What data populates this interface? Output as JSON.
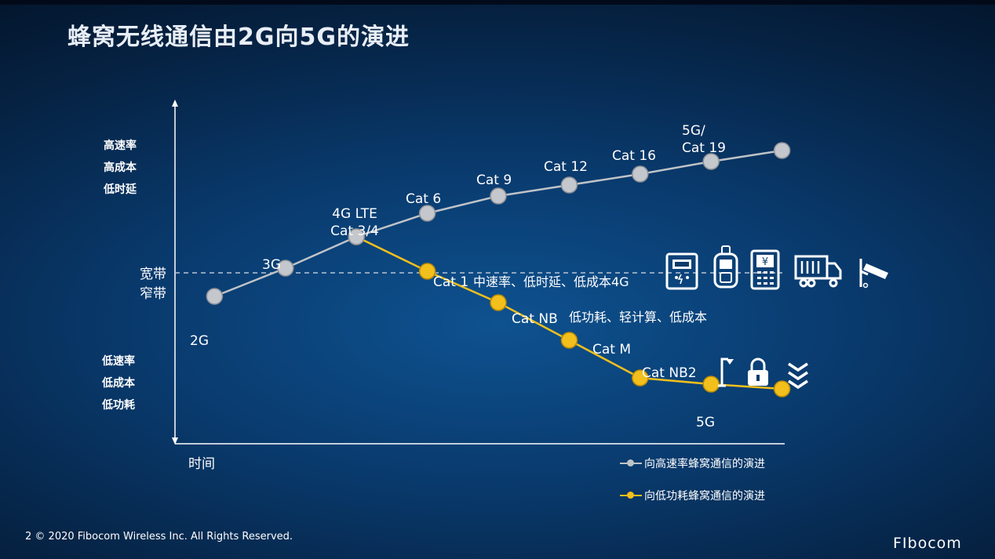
{
  "title": "蜂窝无线通信由2G向5G的演进",
  "y_labels": {
    "top": [
      "高速率",
      "高成本",
      "低时延"
    ],
    "bottom": [
      "低速率",
      "低成本",
      "低功耗"
    ]
  },
  "band_labels": [
    "宽带",
    "窄带"
  ],
  "x_label": "时间",
  "chart_data": {
    "type": "line",
    "xlabel": "时间",
    "series": [
      {
        "name": "向高速率蜂窝通信的演进",
        "color": "#bfc3c8",
        "points": [
          {
            "x": 1,
            "y": 1.95,
            "label": "2G"
          },
          {
            "x": 2,
            "y": 2.85,
            "label": "3G"
          },
          {
            "x": 3,
            "y": 3.85,
            "label": "4G LTE\nCat 3/4"
          },
          {
            "x": 4,
            "y": 4.6,
            "label": "Cat 6"
          },
          {
            "x": 5,
            "y": 5.15,
            "label": "Cat 9"
          },
          {
            "x": 6,
            "y": 5.5,
            "label": "Cat 12"
          },
          {
            "x": 7,
            "y": 5.85,
            "label": "Cat 16"
          },
          {
            "x": 8,
            "y": 6.25,
            "label": "5G/\nCat 19"
          },
          {
            "x": 9,
            "y": 6.6,
            "label": ""
          }
        ]
      },
      {
        "name": "向低功耗蜂窝通信的演进",
        "color": "#f2bf1c",
        "points": [
          {
            "x": 3,
            "y": 3.85,
            "label": ""
          },
          {
            "x": 4,
            "y": 2.75,
            "label": "Cat 1"
          },
          {
            "x": 5,
            "y": 1.75,
            "label": "Cat NB"
          },
          {
            "x": 6,
            "y": 0.55,
            "label": "Cat M"
          },
          {
            "x": 7,
            "y": -0.65,
            "label": "Cat NB2"
          },
          {
            "x": 8,
            "y": -0.85,
            "label": "5G"
          },
          {
            "x": 9,
            "y": -1.0,
            "label": ""
          }
        ]
      }
    ],
    "threshold_y": 2.7,
    "annotations": [
      {
        "text": "中速率、低时延、低成本4G",
        "near": "Cat 1"
      },
      {
        "text": "低功耗、轻计算、低成本",
        "near": "Cat NB"
      }
    ],
    "xlim": [
      0,
      10
    ],
    "ylim": [
      -2,
      8
    ],
    "legend": "bottom-right"
  },
  "legend": {
    "high": "向高速率蜂窝通信的演进",
    "low": "向低功耗蜂窝通信的演进"
  },
  "icons": {
    "broadband": [
      "meter-icon",
      "handheld-terminal-icon",
      "pos-terminal-icon",
      "truck-icon",
      "camera-icon"
    ],
    "narrowband": [
      "streetlight-icon",
      "lock-icon",
      "water-icon"
    ]
  },
  "footer": {
    "page": "2",
    "copyright": "© 2020 Fibocom Wireless Inc. All Rights Reserved."
  },
  "logo": "FIbocom"
}
